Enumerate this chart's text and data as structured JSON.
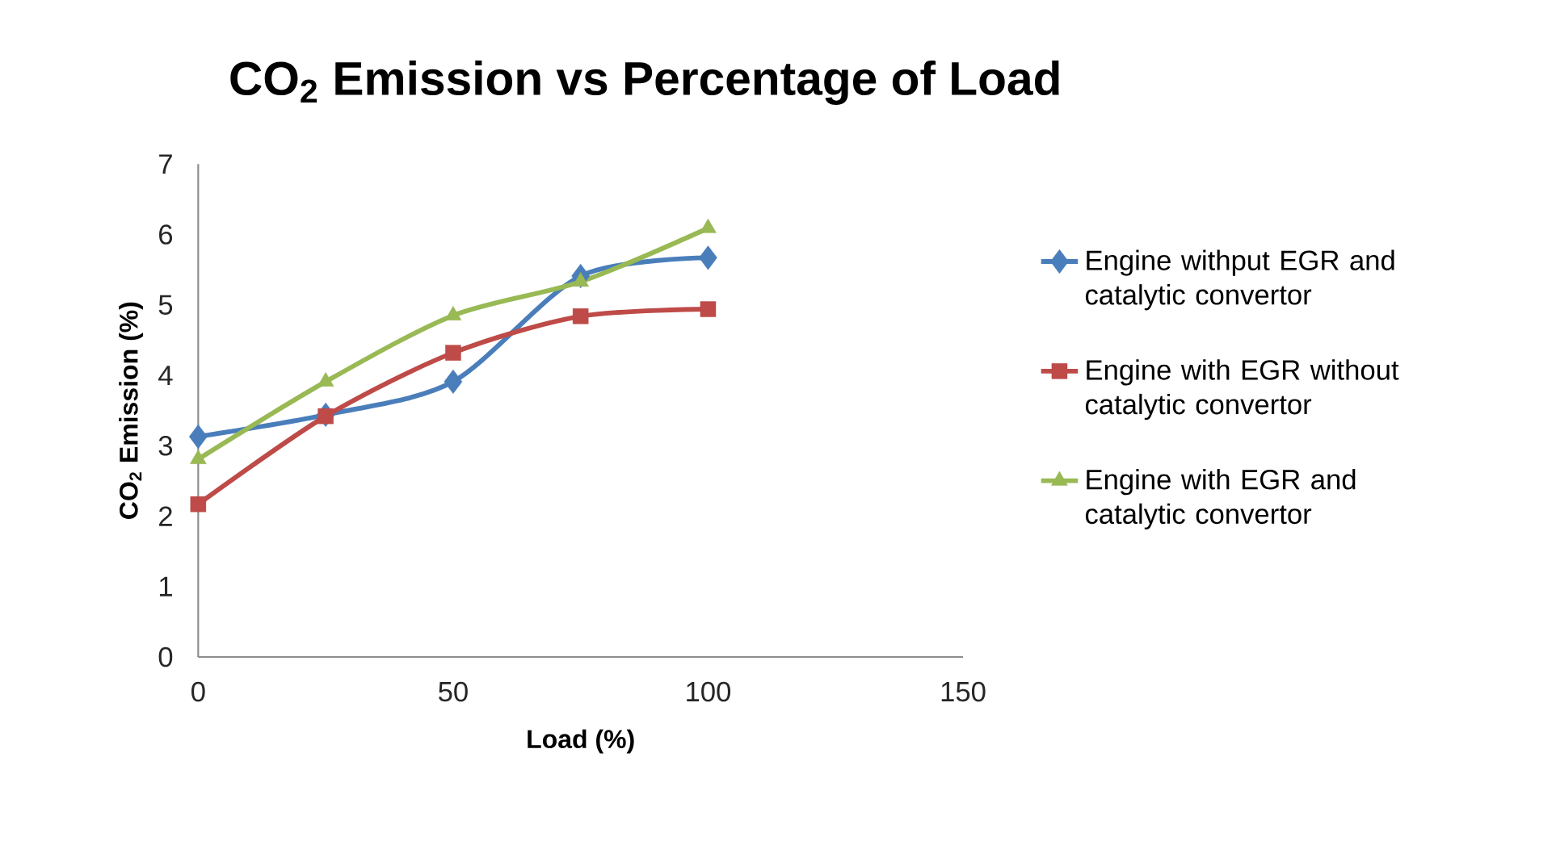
{
  "chart_data": {
    "type": "line",
    "title": "CO$_{2}$ Emission vs Percentage of Load",
    "xlabel": "Load (%)",
    "ylabel": "CO$_{2}$ Emission (%)",
    "x": [
      0,
      25,
      50,
      75,
      100
    ],
    "series": [
      {
        "name": "Engine withput EGR and catalytic convertor",
        "color": "#4a7ebb",
        "marker": "diamond",
        "values": [
          3.13,
          3.44,
          3.91,
          5.41,
          5.67
        ]
      },
      {
        "name": "Engine with EGR without catalytic convertor",
        "color": "#be4b48",
        "marker": "square",
        "values": [
          2.17,
          3.42,
          4.32,
          4.84,
          4.94
        ]
      },
      {
        "name": "Engine with EGR and catalytic convertor",
        "color": "#98b954",
        "marker": "triangle",
        "values": [
          2.81,
          3.91,
          4.85,
          5.33,
          6.09
        ]
      }
    ],
    "xlim": [
      0,
      150
    ],
    "ylim": [
      0,
      7
    ],
    "xticks": [
      0,
      50,
      100,
      150
    ],
    "yticks": [
      0,
      1,
      2,
      3,
      4,
      5,
      6,
      7
    ],
    "grid": false,
    "legend": "right",
    "line_style": "solid"
  }
}
